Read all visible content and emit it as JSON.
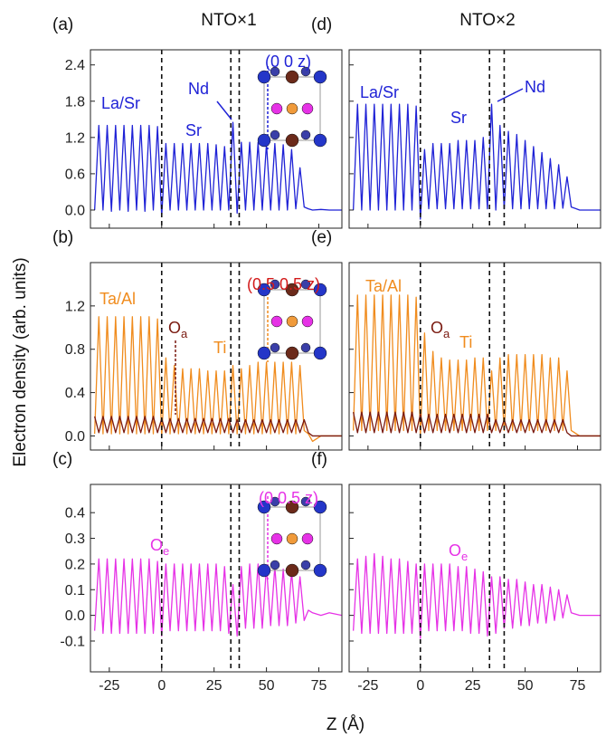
{
  "figure": {
    "ylabel": "Electron density (arb. units)",
    "xlabel": "Z (Å)"
  },
  "chart_data": [
    {
      "type": "line",
      "title": "NTO×1",
      "panel_label": "(a)",
      "x": [
        -32,
        -30,
        -28,
        -26,
        -24,
        -22,
        -20,
        -18,
        -16,
        -14,
        -12,
        -10,
        -8,
        -6,
        -4,
        -2,
        0,
        2,
        4,
        6,
        8,
        10,
        12,
        14,
        16,
        18,
        20,
        22,
        24,
        26,
        28,
        30,
        32,
        34,
        36,
        38,
        40,
        42,
        44,
        46,
        48,
        50,
        52,
        54,
        56,
        58,
        60,
        62,
        64,
        66,
        68,
        70,
        72,
        76,
        80,
        86
      ],
      "xlim": [
        -34,
        86
      ],
      "xticks": [
        -25,
        0,
        25,
        50,
        75
      ],
      "ylim": [
        -0.3,
        2.65
      ],
      "yticks": [
        {
          "value": 0,
          "label": "0.0"
        },
        0.6,
        1.2,
        1.8,
        2.4
      ],
      "tick_labels": {
        "x": false,
        "y": true
      },
      "vlines": [
        0,
        33,
        37
      ],
      "annotations": [
        "La/Sr",
        "Nd",
        "Sr",
        "(0 0 z)"
      ],
      "series": [
        {
          "color": "#1f22d6",
          "values": [
            0,
            1.4,
            0,
            1.4,
            -0.02,
            1.4,
            0,
            1.4,
            -0.02,
            1.4,
            0,
            1.4,
            -0.02,
            1.4,
            0,
            1.38,
            -0.1,
            1.1,
            0,
            1.1,
            0,
            1.1,
            0,
            1.1,
            0,
            1.1,
            0,
            1.1,
            0,
            1.08,
            0,
            1.05,
            0,
            1.45,
            -0.05,
            1.12,
            0,
            1.12,
            0,
            1.12,
            0,
            1.1,
            0,
            1.1,
            0,
            1.08,
            0,
            1.0,
            0.02,
            0.7,
            0.05,
            0.02,
            0,
            0.01,
            0,
            0
          ]
        }
      ]
    },
    {
      "type": "line",
      "panel_label": "(b)",
      "x": [
        -32,
        -30,
        -28,
        -26,
        -24,
        -22,
        -20,
        -18,
        -16,
        -14,
        -12,
        -10,
        -8,
        -6,
        -4,
        -2,
        0,
        2,
        4,
        6,
        8,
        10,
        12,
        14,
        16,
        18,
        20,
        22,
        24,
        26,
        28,
        30,
        32,
        34,
        36,
        38,
        40,
        42,
        44,
        46,
        48,
        50,
        52,
        54,
        56,
        58,
        60,
        62,
        64,
        66,
        68,
        70,
        72,
        76,
        80,
        86
      ],
      "xlim": [
        -34,
        86
      ],
      "xticks": [
        -25,
        0,
        25,
        50,
        75
      ],
      "ylim": [
        -0.13,
        1.6
      ],
      "yticks": [
        {
          "value": 0,
          "label": "0.0"
        },
        0.4,
        0.8,
        1.2
      ],
      "tick_labels": {
        "x": false,
        "y": true
      },
      "vlines": [
        0,
        33,
        37
      ],
      "annotations": [
        "Ta/Al",
        {
          "text": "O",
          "subscript": "a"
        },
        "Ti",
        "(0.5 0.5 z)"
      ],
      "series": [
        {
          "color": "#f08c1e",
          "values": [
            0.02,
            1.1,
            0.02,
            1.1,
            0.02,
            1.1,
            0.02,
            1.1,
            0.02,
            1.1,
            0.02,
            1.1,
            0.02,
            1.1,
            0.02,
            1.08,
            0,
            0.72,
            0.02,
            0.65,
            0.02,
            0.62,
            0.02,
            0.62,
            0.02,
            0.62,
            0.02,
            0.6,
            0.02,
            0.6,
            0.02,
            0.6,
            0.02,
            0.65,
            0.02,
            0.62,
            0.02,
            0.65,
            0.02,
            0.68,
            0.02,
            0.68,
            0.02,
            0.68,
            0.02,
            0.68,
            0.02,
            0.68,
            0.02,
            0.65,
            0.05,
            0.02,
            -0.05,
            0,
            0,
            0
          ]
        },
        {
          "color": "#7a1a10",
          "values": [
            0.18,
            0.03,
            0.18,
            0.03,
            0.18,
            0.03,
            0.18,
            0.03,
            0.18,
            0.03,
            0.18,
            0.03,
            0.18,
            0.03,
            0.18,
            0.03,
            0.16,
            0.03,
            0.16,
            0.03,
            0.16,
            0.03,
            0.16,
            0.03,
            0.16,
            0.03,
            0.16,
            0.03,
            0.16,
            0.03,
            0.16,
            0.03,
            0.16,
            0.03,
            0.15,
            0.03,
            0.15,
            0.03,
            0.15,
            0.03,
            0.15,
            0.03,
            0.15,
            0.03,
            0.15,
            0.03,
            0.15,
            0.03,
            0.15,
            0.03,
            0.15,
            0.03,
            0,
            0,
            0,
            0
          ]
        }
      ]
    },
    {
      "type": "line",
      "panel_label": "(c)",
      "x": [
        -32,
        -30,
        -28,
        -26,
        -24,
        -22,
        -20,
        -18,
        -16,
        -14,
        -12,
        -10,
        -8,
        -6,
        -4,
        -2,
        0,
        2,
        4,
        6,
        8,
        10,
        12,
        14,
        16,
        18,
        20,
        22,
        24,
        26,
        28,
        30,
        32,
        34,
        36,
        38,
        40,
        42,
        44,
        46,
        48,
        50,
        52,
        54,
        56,
        58,
        60,
        62,
        64,
        66,
        68,
        70,
        72,
        76,
        80,
        86
      ],
      "xlim": [
        -34,
        86
      ],
      "xticks": [
        -25,
        0,
        25,
        50,
        75
      ],
      "ylim": [
        -0.22,
        0.51
      ],
      "yticks": [
        -0.1,
        {
          "value": 0,
          "label": "0.0"
        },
        0.1,
        0.2,
        0.3,
        0.4
      ],
      "tick_labels": {
        "x": true,
        "y": true
      },
      "vlines": [
        0,
        33,
        37
      ],
      "annotations": [
        {
          "text": "O",
          "subscript": "e"
        },
        "(0 0.5 z)"
      ],
      "series": [
        {
          "color": "#e632e6",
          "values": [
            -0.06,
            0.22,
            -0.07,
            0.22,
            -0.07,
            0.22,
            -0.07,
            0.22,
            -0.07,
            0.22,
            -0.07,
            0.22,
            -0.07,
            0.22,
            -0.07,
            0.21,
            -0.08,
            0.2,
            -0.06,
            0.2,
            -0.06,
            0.2,
            -0.06,
            0.2,
            -0.06,
            0.2,
            -0.06,
            0.2,
            -0.06,
            0.2,
            -0.06,
            0.19,
            -0.07,
            0.12,
            -0.08,
            0.19,
            -0.05,
            0.2,
            -0.05,
            0.2,
            -0.05,
            0.19,
            -0.04,
            0.19,
            -0.04,
            0.18,
            -0.04,
            0.17,
            -0.03,
            0.15,
            -0.02,
            0.02,
            0.01,
            0,
            0.01,
            0
          ]
        }
      ]
    },
    {
      "type": "line",
      "title": "NTO×2",
      "panel_label": "(d)",
      "x": [
        -32,
        -30,
        -28,
        -26,
        -24,
        -22,
        -20,
        -18,
        -16,
        -14,
        -12,
        -10,
        -8,
        -6,
        -4,
        -2,
        0,
        2,
        4,
        6,
        8,
        10,
        12,
        14,
        16,
        18,
        20,
        22,
        24,
        26,
        28,
        30,
        32,
        34,
        36,
        38,
        40,
        42,
        44,
        46,
        48,
        50,
        52,
        54,
        56,
        58,
        60,
        62,
        64,
        66,
        68,
        70,
        72,
        76,
        80,
        86
      ],
      "xlim": [
        -34,
        86
      ],
      "xticks": [
        -25,
        0,
        25,
        50,
        75
      ],
      "ylim": [
        -0.3,
        2.65
      ],
      "yticks": [
        0,
        0.6,
        1.2,
        1.8,
        2.4
      ],
      "tick_labels": {
        "x": false,
        "y": false
      },
      "vlines": [
        0,
        33,
        40
      ],
      "annotations": [
        "La/Sr",
        "Sr",
        "Nd"
      ],
      "series": [
        {
          "color": "#1f22d6",
          "values": [
            0,
            1.75,
            0,
            1.75,
            0,
            1.75,
            0,
            1.75,
            0,
            1.75,
            0,
            1.75,
            0,
            1.75,
            0,
            1.72,
            -0.15,
            1.0,
            0.02,
            1.1,
            0.02,
            1.1,
            0.02,
            1.1,
            0.02,
            1.15,
            0.02,
            1.15,
            0.02,
            1.15,
            0.02,
            1.2,
            0.02,
            1.75,
            0,
            1.4,
            0.02,
            1.3,
            0.02,
            1.25,
            0.02,
            1.15,
            0.02,
            1.05,
            0.02,
            0.95,
            0.02,
            0.85,
            0.02,
            0.75,
            0.03,
            0.55,
            0.05,
            0,
            0,
            0
          ]
        }
      ]
    },
    {
      "type": "line",
      "panel_label": "(e)",
      "x": [
        -32,
        -30,
        -28,
        -26,
        -24,
        -22,
        -20,
        -18,
        -16,
        -14,
        -12,
        -10,
        -8,
        -6,
        -4,
        -2,
        0,
        2,
        4,
        6,
        8,
        10,
        12,
        14,
        16,
        18,
        20,
        22,
        24,
        26,
        28,
        30,
        32,
        34,
        36,
        38,
        40,
        42,
        44,
        46,
        48,
        50,
        52,
        54,
        56,
        58,
        60,
        62,
        64,
        66,
        68,
        70,
        72,
        76,
        80,
        86
      ],
      "xlim": [
        -34,
        86
      ],
      "xticks": [
        -25,
        0,
        25,
        50,
        75
      ],
      "ylim": [
        -0.13,
        1.6
      ],
      "yticks": [
        0,
        0.4,
        0.8,
        1.2
      ],
      "tick_labels": {
        "x": false,
        "y": false
      },
      "vlines": [
        0,
        33,
        40
      ],
      "annotations": [
        "Ta/Al",
        {
          "text": "O",
          "subscript": "a"
        },
        "Ti"
      ],
      "series": [
        {
          "color": "#f08c1e",
          "values": [
            0.05,
            1.3,
            0.05,
            1.3,
            0.05,
            1.3,
            0.05,
            1.3,
            0.05,
            1.3,
            0.05,
            1.3,
            0.05,
            1.3,
            0.05,
            1.28,
            0,
            0.95,
            0.05,
            0.78,
            0.05,
            0.72,
            0.05,
            0.7,
            0.05,
            0.7,
            0.05,
            0.7,
            0.05,
            0.72,
            0.05,
            0.72,
            0.05,
            0.6,
            0.05,
            0.72,
            0.05,
            0.75,
            0.05,
            0.75,
            0.05,
            0.75,
            0.05,
            0.75,
            0.05,
            0.75,
            0.05,
            0.72,
            0.05,
            0.72,
            0.05,
            0.6,
            0.05,
            0,
            0,
            0
          ]
        },
        {
          "color": "#7a1a10",
          "values": [
            0.22,
            0.03,
            0.22,
            0.03,
            0.22,
            0.03,
            0.22,
            0.03,
            0.22,
            0.03,
            0.22,
            0.03,
            0.22,
            0.03,
            0.22,
            0.03,
            0.2,
            0.03,
            0.2,
            0.03,
            0.2,
            0.03,
            0.2,
            0.03,
            0.2,
            0.03,
            0.2,
            0.03,
            0.2,
            0.03,
            0.2,
            0.03,
            0.2,
            0.03,
            0.15,
            0.03,
            0.15,
            0.03,
            0.15,
            0.03,
            0.15,
            0.03,
            0.15,
            0.03,
            0.15,
            0.03,
            0.15,
            0.03,
            0.15,
            0.03,
            0.15,
            0.03,
            0,
            0,
            0,
            0
          ]
        }
      ]
    },
    {
      "type": "line",
      "panel_label": "(f)",
      "x": [
        -32,
        -30,
        -28,
        -26,
        -24,
        -22,
        -20,
        -18,
        -16,
        -14,
        -12,
        -10,
        -8,
        -6,
        -4,
        -2,
        0,
        2,
        4,
        6,
        8,
        10,
        12,
        14,
        16,
        18,
        20,
        22,
        24,
        26,
        28,
        30,
        32,
        34,
        36,
        38,
        40,
        42,
        44,
        46,
        48,
        50,
        52,
        54,
        56,
        58,
        60,
        62,
        64,
        66,
        68,
        70,
        72,
        76,
        80,
        86
      ],
      "xlim": [
        -34,
        86
      ],
      "xticks": [
        -25,
        0,
        25,
        50,
        75
      ],
      "ylim": [
        -0.22,
        0.51
      ],
      "yticks": [
        -0.1,
        0,
        0.1,
        0.2,
        0.3,
        0.4
      ],
      "tick_labels": {
        "x": true,
        "y": false
      },
      "vlines": [
        0,
        33,
        40
      ],
      "annotations": [
        {
          "text": "O",
          "subscript": "e"
        }
      ],
      "series": [
        {
          "color": "#e632e6",
          "values": [
            -0.06,
            0.22,
            -0.07,
            0.23,
            -0.07,
            0.24,
            -0.07,
            0.23,
            -0.07,
            0.22,
            -0.07,
            0.22,
            -0.07,
            0.21,
            -0.07,
            0.2,
            -0.09,
            0.2,
            -0.06,
            0.2,
            -0.06,
            0.2,
            -0.06,
            0.2,
            -0.06,
            0.19,
            -0.06,
            0.19,
            -0.07,
            0.18,
            -0.07,
            0.17,
            -0.08,
            0.15,
            -0.07,
            0.15,
            -0.05,
            0.14,
            -0.05,
            0.14,
            -0.04,
            0.13,
            -0.04,
            0.12,
            -0.03,
            0.12,
            -0.03,
            0.11,
            -0.02,
            0.1,
            -0.01,
            0.08,
            0.01,
            0,
            0,
            0
          ]
        }
      ]
    }
  ]
}
